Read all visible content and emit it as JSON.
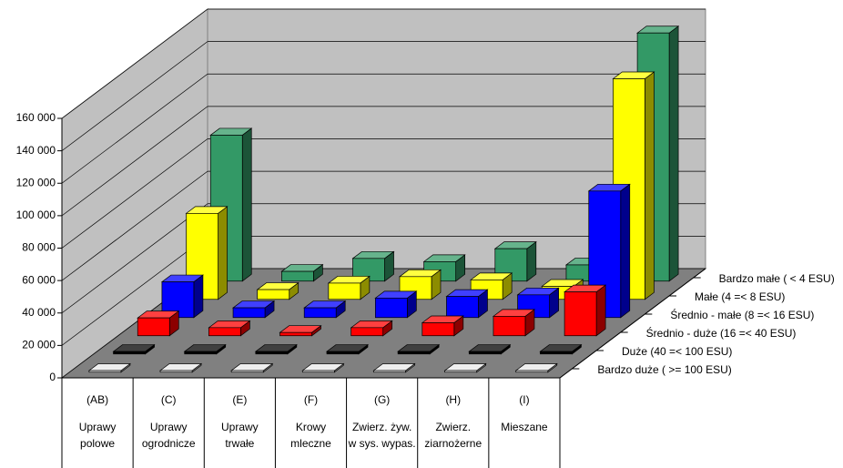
{
  "chart_data": {
    "type": "bar3d",
    "categories": [
      "(AB)",
      "(C)",
      "(E)",
      "(F)",
      "(G)",
      "(H)",
      "(I)"
    ],
    "category_names": [
      [
        "Uprawy",
        "polowe"
      ],
      [
        "Uprawy",
        "ogrodnicze"
      ],
      [
        "Uprawy",
        "trwałe"
      ],
      [
        "Krowy",
        "mleczne"
      ],
      [
        "Zwierz. żyw.",
        "w sys. wypas."
      ],
      [
        "Zwierz.",
        "ziarnożerne"
      ],
      [
        "Mieszane"
      ]
    ],
    "series": [
      {
        "name": "Bardzo małe  ( < 4 ESU)",
        "color": "#339966",
        "values": [
          90000,
          6000,
          14000,
          12000,
          20000,
          10000,
          153000
        ]
      },
      {
        "name": "Małe  (4 =< 8 ESU)",
        "color": "#ffff00",
        "values": [
          53000,
          6000,
          10000,
          14000,
          12000,
          8000,
          136000
        ]
      },
      {
        "name": "Średnio - małe  (8 =< 16 ESU)",
        "color": "#0000ff",
        "values": [
          22000,
          6000,
          6000,
          12000,
          13000,
          14000,
          78000
        ]
      },
      {
        "name": "Średnio - duże  (16 =< 40 ESU)",
        "color": "#ff0000",
        "values": [
          11000,
          5000,
          2000,
          5000,
          8000,
          12000,
          27000
        ]
      },
      {
        "name": "Duże  (40 =< 100 ESU)",
        "color": "#000000",
        "values": [
          1500,
          1500,
          1500,
          1500,
          1500,
          1500,
          1500
        ]
      },
      {
        "name": "Bardzo duże  ( >= 100 ESU)",
        "color": "#e8e8e8",
        "values": [
          1000,
          1000,
          1000,
          1000,
          1000,
          1000,
          1000
        ]
      }
    ],
    "ylim": [
      0,
      160000
    ],
    "yticks": [
      0,
      {
        "value": 20000,
        "label": "20 000"
      },
      {
        "value": 40000,
        "label": "40 000"
      },
      {
        "value": 60000,
        "label": "60 000"
      },
      {
        "value": 80000,
        "label": "80 000"
      },
      {
        "value": 100000,
        "label": "100 000"
      },
      {
        "value": 120000,
        "label": "120 000"
      },
      {
        "value": 140000,
        "label": "140 000"
      },
      {
        "value": 160000,
        "label": "160 000"
      }
    ],
    "grid": true
  }
}
